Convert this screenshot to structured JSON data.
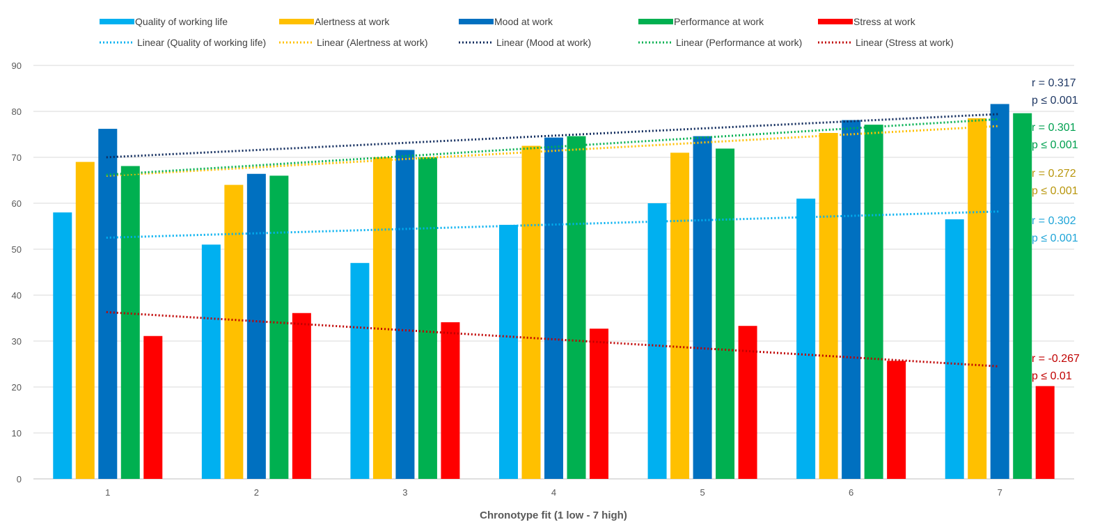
{
  "chart_data": {
    "type": "bar",
    "xlabel": "Chronotype fit (1 low - 7 high)",
    "ylabel": "",
    "categories": [
      "1",
      "2",
      "3",
      "4",
      "5",
      "6",
      "7"
    ],
    "ylim": [
      0,
      90
    ],
    "yticks": [
      0,
      10,
      20,
      30,
      40,
      50,
      60,
      70,
      80,
      90
    ],
    "grid": true,
    "legend_position": "top",
    "series": [
      {
        "name": "Quality of working life",
        "color": "#00b0f0",
        "values": [
          58,
          51,
          47,
          55.3,
          60,
          61,
          56.5
        ],
        "trend_name": "Linear (Quality of working life)",
        "trend": [
          52.5,
          58.2
        ]
      },
      {
        "name": "Alertness at work",
        "color": "#ffc000",
        "values": [
          69,
          64,
          70,
          72.5,
          71,
          75.3,
          78.5
        ],
        "trend_name": "Linear (Alertness at work)",
        "trend": [
          66,
          76.8
        ]
      },
      {
        "name": "Mood at work",
        "color": "#0070c0",
        "values": [
          76.2,
          66.4,
          71.6,
          74.3,
          74.6,
          78.1,
          81.6
        ],
        "trend_name": "Linear (Mood at work)",
        "trend": [
          70,
          79.4
        ]
      },
      {
        "name": "Performance at work",
        "color": "#00b050",
        "values": [
          68.1,
          66,
          70,
          74.6,
          71.9,
          77.1,
          79.6
        ],
        "trend_name": "Linear (Performance at work)",
        "trend": [
          66.2,
          78.3
        ]
      },
      {
        "name": "Stress at work",
        "color": "#ff0000",
        "values": [
          31.1,
          36.1,
          34.1,
          32.7,
          33.3,
          25.7,
          20.2
        ],
        "trend_name": "Linear (Stress at work)",
        "trend": [
          36.3,
          24.5
        ]
      }
    ],
    "trend_colors": [
      "#00b0f0",
      "#ffc000",
      "#0f2a5c",
      "#00b050",
      "#c00000"
    ],
    "annotations": [
      {
        "r": "r = 0.317",
        "p": "p ≤ 0.001",
        "color": "#1f3864"
      },
      {
        "r": "r = 0.301",
        "p": "p ≤ 0.001",
        "color": "#00a050"
      },
      {
        "r": "r = 0.272",
        "p": "p ≤ 0.001",
        "color": "#b8960c"
      },
      {
        "r": "r = 0.302",
        "p": "p ≤ 0.001",
        "color": "#1fa5d8"
      },
      {
        "r": "r = -0.267",
        "p": "p ≤ 0.01",
        "color": "#c00000"
      }
    ]
  }
}
